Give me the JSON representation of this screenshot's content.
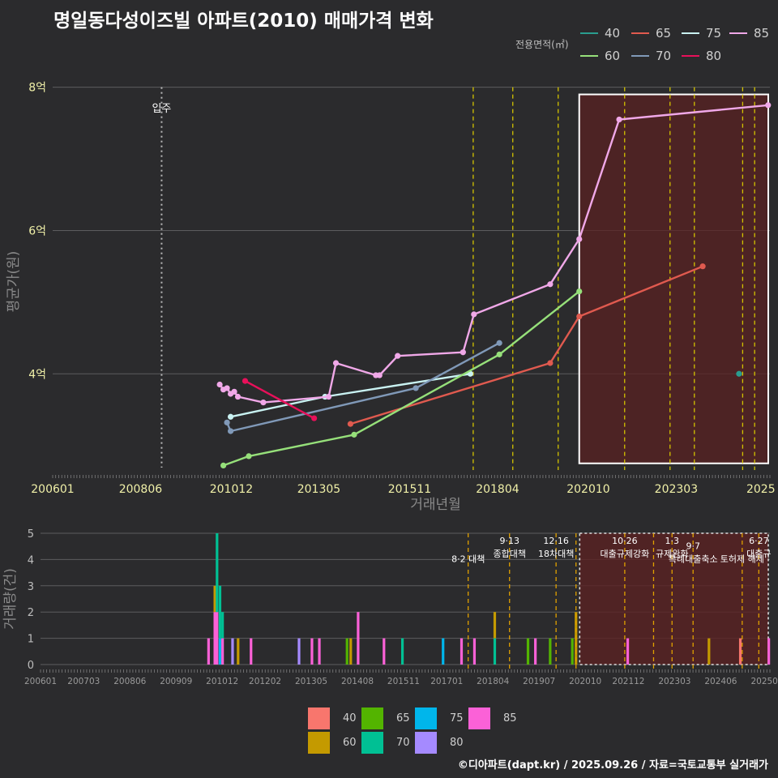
{
  "title": "명일동다성이즈빌 아파트(2010) 매매가격 변화",
  "footer": "©디아파트(dapt.kr) / 2025.09.26 / 자료=국토교통부 실거래가",
  "legend_top": {
    "title": "전용면적(㎡)",
    "items": [
      {
        "label": "40",
        "color": "#2a9d8f"
      },
      {
        "label": "65",
        "color": "#e05a4f"
      },
      {
        "label": "75",
        "color": "#c9f2f2"
      },
      {
        "label": "85",
        "color": "#f0a8e8"
      },
      {
        "label": "60",
        "color": "#96e07a"
      },
      {
        "label": "70",
        "color": "#8099b8"
      },
      {
        "label": "80",
        "color": "#e8105a"
      }
    ]
  },
  "legend_bottom": {
    "items": [
      {
        "label": "40",
        "color": "#f8766d"
      },
      {
        "label": "65",
        "color": "#53b400"
      },
      {
        "label": "75",
        "color": "#00b6eb"
      },
      {
        "label": "85",
        "color": "#fb61d7"
      },
      {
        "label": "60",
        "color": "#c49a00"
      },
      {
        "label": "70",
        "color": "#00c094"
      },
      {
        "label": "80",
        "color": "#a58aff"
      }
    ]
  },
  "chart_data": [
    {
      "type": "line",
      "title": "명일동다성이즈빌 아파트(2010) 매매가격 변화",
      "xlabel": "거래년월",
      "ylabel": "평균가(원)",
      "x_range": [
        2006.0,
        2025.75
      ],
      "ylim": [
        2.6,
        8.2
      ],
      "y_ticks": [
        {
          "v": 4,
          "label": "4억"
        },
        {
          "v": 6,
          "label": "6억"
        },
        {
          "v": 8,
          "label": "8억"
        }
      ],
      "x_ticks": [
        {
          "v": 2006.0,
          "label": "200601"
        },
        {
          "v": 2008.42,
          "label": "200806"
        },
        {
          "v": 2010.92,
          "label": "201012"
        },
        {
          "v": 2013.33,
          "label": "201305"
        },
        {
          "v": 2015.83,
          "label": "201511"
        },
        {
          "v": 2018.25,
          "label": "201804"
        },
        {
          "v": 2020.75,
          "label": "202010"
        },
        {
          "v": 2023.17,
          "label": "202303"
        },
        {
          "v": 2025.5,
          "label": "2025"
        }
      ],
      "occupancy": {
        "x": 2009.0,
        "label": "입주"
      },
      "policy_lines": [
        2017.58,
        2018.67,
        2019.92,
        2021.75,
        2023.0,
        2023.67,
        2025.0,
        2025.33
      ],
      "highlight_range": [
        2020.5,
        2025.75
      ],
      "series": [
        {
          "name": "40",
          "points": [
            [
              2024.9,
              4.0
            ]
          ]
        },
        {
          "name": "65",
          "points": [
            [
              2014.2,
              3.3
            ],
            [
              2019.7,
              4.15
            ],
            [
              2020.5,
              4.8
            ],
            [
              2023.9,
              5.5
            ]
          ]
        },
        {
          "name": "75",
          "points": [
            [
              2010.9,
              3.4
            ],
            [
              2013.5,
              3.68
            ],
            [
              2017.5,
              4.0
            ]
          ]
        },
        {
          "name": "85",
          "points": [
            [
              2010.6,
              3.85
            ],
            [
              2010.7,
              3.78
            ],
            [
              2010.8,
              3.8
            ],
            [
              2010.9,
              3.72
            ],
            [
              2011.0,
              3.75
            ],
            [
              2011.1,
              3.68
            ],
            [
              2011.8,
              3.6
            ],
            [
              2013.6,
              3.68
            ],
            [
              2013.8,
              4.15
            ],
            [
              2014.9,
              3.98
            ],
            [
              2015.0,
              3.98
            ],
            [
              2015.5,
              4.25
            ],
            [
              2017.3,
              4.3
            ],
            [
              2017.6,
              4.83
            ],
            [
              2019.7,
              5.25
            ],
            [
              2020.5,
              5.88
            ],
            [
              2021.6,
              7.55
            ],
            [
              2025.7,
              7.75
            ]
          ]
        },
        {
          "name": "60",
          "points": [
            [
              2010.7,
              2.72
            ],
            [
              2011.4,
              2.85
            ],
            [
              2014.3,
              3.15
            ],
            [
              2018.3,
              4.27
            ],
            [
              2020.5,
              5.15
            ]
          ]
        },
        {
          "name": "70",
          "points": [
            [
              2010.8,
              3.32
            ],
            [
              2010.9,
              3.2
            ],
            [
              2016.0,
              3.8
            ],
            [
              2018.3,
              4.43
            ]
          ]
        },
        {
          "name": "80",
          "points": [
            [
              2011.3,
              3.9
            ],
            [
              2013.2,
              3.38
            ]
          ]
        }
      ]
    },
    {
      "type": "bar",
      "ylabel": "거래량(건)",
      "x_range": [
        2006.0,
        2025.75
      ],
      "ylim": [
        0,
        5
      ],
      "y_ticks": [
        0,
        1,
        2,
        3,
        4,
        5
      ],
      "x_ticks": [
        {
          "v": 2006.0,
          "label": "200601"
        },
        {
          "v": 2007.17,
          "label": "200703"
        },
        {
          "v": 2008.42,
          "label": "200806"
        },
        {
          "v": 2009.67,
          "label": "200909"
        },
        {
          "v": 2010.92,
          "label": "201012"
        },
        {
          "v": 2012.08,
          "label": "201202"
        },
        {
          "v": 2013.33,
          "label": "201305"
        },
        {
          "v": 2014.58,
          "label": "201408"
        },
        {
          "v": 2015.83,
          "label": "201511"
        },
        {
          "v": 2017.0,
          "label": "201701"
        },
        {
          "v": 2018.25,
          "label": "201804"
        },
        {
          "v": 2019.5,
          "label": "201907"
        },
        {
          "v": 2020.75,
          "label": "202010"
        },
        {
          "v": 2021.92,
          "label": "202112"
        },
        {
          "v": 2023.17,
          "label": "202303"
        },
        {
          "v": 2024.42,
          "label": "202406"
        },
        {
          "v": 2025.6,
          "label": "20250"
        }
      ],
      "highlight_range": [
        2020.6,
        2025.75
      ],
      "policy_annotations": [
        {
          "x": 2017.58,
          "date": "",
          "text": "8·2 대책",
          "level": 1
        },
        {
          "x": 2018.7,
          "date": "9·13",
          "text": "종합대책",
          "level": 0
        },
        {
          "x": 2019.96,
          "date": "12·16",
          "text": "18차대책",
          "level": 0
        },
        {
          "x": 2020.5,
          "date": "",
          "text": "",
          "level": 0
        },
        {
          "x": 2021.82,
          "date": "10·26",
          "text": "대출규제강화",
          "level": 0
        },
        {
          "x": 2022.6,
          "date": "",
          "text": "",
          "level": 0
        },
        {
          "x": 2023.1,
          "date": "1·3",
          "text": "규제완화",
          "level": 0
        },
        {
          "x": 2023.67,
          "date": "9·7",
          "text": "특례대출축소",
          "level": 1
        },
        {
          "x": 2025.0,
          "date": "",
          "text": "토허제 해제",
          "level": 1
        },
        {
          "x": 2025.45,
          "date": "6·27",
          "text": "대출규",
          "level": 0
        }
      ],
      "bars": [
        {
          "x": 2010.55,
          "segments": [
            {
              "s": "85",
              "v": 1
            }
          ]
        },
        {
          "x": 2010.72,
          "segments": [
            {
              "s": "85",
              "v": 2
            },
            {
              "s": "60",
              "v": 1
            }
          ]
        },
        {
          "x": 2010.78,
          "segments": [
            {
              "s": "85",
              "v": 2
            },
            {
              "s": "70",
              "v": 3
            }
          ]
        },
        {
          "x": 2010.86,
          "segments": [
            {
              "s": "75",
              "v": 1
            },
            {
              "s": "70",
              "v": 2
            }
          ]
        },
        {
          "x": 2010.93,
          "segments": [
            {
              "s": "85",
              "v": 1
            },
            {
              "s": "70",
              "v": 1
            }
          ]
        },
        {
          "x": 2011.2,
          "segments": [
            {
              "s": "80",
              "v": 1
            }
          ]
        },
        {
          "x": 2011.35,
          "segments": [
            {
              "s": "60",
              "v": 1
            }
          ]
        },
        {
          "x": 2011.7,
          "segments": [
            {
              "s": "85",
              "v": 1
            }
          ]
        },
        {
          "x": 2013.0,
          "segments": [
            {
              "s": "80",
              "v": 1
            }
          ]
        },
        {
          "x": 2013.35,
          "segments": [
            {
              "s": "85",
              "v": 1
            }
          ]
        },
        {
          "x": 2013.55,
          "segments": [
            {
              "s": "85",
              "v": 1
            }
          ]
        },
        {
          "x": 2014.3,
          "segments": [
            {
              "s": "65",
              "v": 1
            }
          ]
        },
        {
          "x": 2014.4,
          "segments": [
            {
              "s": "60",
              "v": 1
            }
          ]
        },
        {
          "x": 2014.6,
          "segments": [
            {
              "s": "85",
              "v": 2
            }
          ]
        },
        {
          "x": 2015.3,
          "segments": [
            {
              "s": "85",
              "v": 1
            }
          ]
        },
        {
          "x": 2015.8,
          "segments": [
            {
              "s": "70",
              "v": 1
            }
          ]
        },
        {
          "x": 2016.9,
          "segments": [
            {
              "s": "75",
              "v": 1
            }
          ]
        },
        {
          "x": 2017.4,
          "segments": [
            {
              "s": "85",
              "v": 1
            }
          ]
        },
        {
          "x": 2017.75,
          "segments": [
            {
              "s": "85",
              "v": 1
            }
          ]
        },
        {
          "x": 2018.3,
          "segments": [
            {
              "s": "70",
              "v": 1
            },
            {
              "s": "60",
              "v": 1
            }
          ]
        },
        {
          "x": 2019.2,
          "segments": [
            {
              "s": "65",
              "v": 1
            }
          ]
        },
        {
          "x": 2019.4,
          "segments": [
            {
              "s": "85",
              "v": 1
            }
          ]
        },
        {
          "x": 2019.8,
          "segments": [
            {
              "s": "65",
              "v": 1
            }
          ]
        },
        {
          "x": 2020.4,
          "segments": [
            {
              "s": "65",
              "v": 1
            }
          ]
        },
        {
          "x": 2020.5,
          "segments": [
            {
              "s": "60",
              "v": 2
            }
          ]
        },
        {
          "x": 2021.9,
          "segments": [
            {
              "s": "85",
              "v": 1
            }
          ]
        },
        {
          "x": 2024.1,
          "segments": [
            {
              "s": "60",
              "v": 1
            }
          ]
        },
        {
          "x": 2024.95,
          "segments": [
            {
              "s": "40",
              "v": 1
            }
          ]
        },
        {
          "x": 2025.72,
          "segments": [
            {
              "s": "85",
              "v": 1
            }
          ]
        }
      ]
    }
  ]
}
